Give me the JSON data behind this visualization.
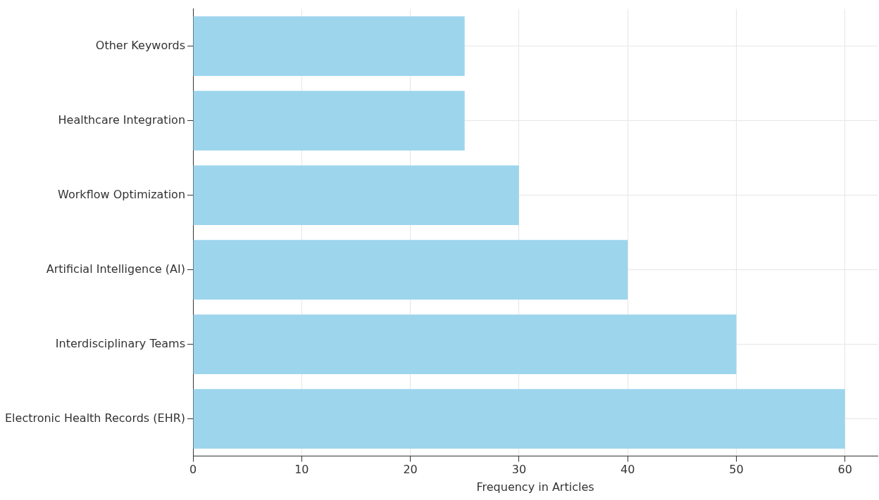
{
  "chart_data": {
    "type": "bar",
    "orientation": "horizontal",
    "xlabel": "Frequency in Articles",
    "categories": [
      "Other Keywords",
      "Healthcare Integration",
      "Workflow Optimization",
      "Artificial Intelligence (AI)",
      "Interdisciplinary Teams",
      "Electronic Health Records (EHR)"
    ],
    "values": [
      25,
      25,
      30,
      40,
      50,
      60
    ],
    "color": "#9dd5ed",
    "xlim": [
      0,
      63
    ],
    "xticks": [
      0,
      10,
      20,
      30,
      40,
      50,
      60
    ],
    "grid": true
  }
}
